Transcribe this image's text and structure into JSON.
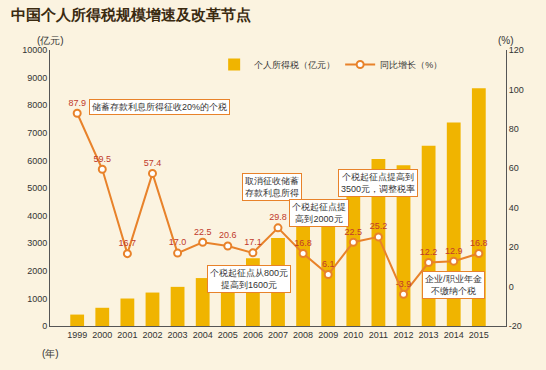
{
  "chart_data": {
    "type": "bar",
    "title": "中国个人所得税规模增速及改革节点",
    "x_label": "(年)",
    "y_label": "(亿元)",
    "y2_label": "(%)",
    "categories": [
      "1999",
      "2000",
      "2001",
      "2002",
      "2003",
      "2004",
      "2005",
      "2006",
      "2007",
      "2008",
      "2009",
      "2010",
      "2011",
      "2012",
      "2013",
      "2014",
      "2015"
    ],
    "series": [
      {
        "name": "个人所得税（亿元）",
        "type": "bar",
        "color": "#f0b400",
        "values": [
          414,
          660,
          996,
          1212,
          1418,
          1737,
          2094,
          2453,
          3185,
          3722,
          3949,
          4837,
          6054,
          5820,
          6532,
          7377,
          8618
        ]
      },
      {
        "name": "同比增长（%）",
        "type": "line",
        "axis": "y2",
        "color": "#e8822a",
        "marker": "circle",
        "data_labels": true,
        "values": [
          87.9,
          59.5,
          16.7,
          57.4,
          17.0,
          22.5,
          20.6,
          17.1,
          29.8,
          16.8,
          6.1,
          22.5,
          25.2,
          -3.9,
          12.2,
          12.9,
          16.8
        ],
        "value_labels": [
          "87.9",
          "59.5",
          "16.7",
          "57.4",
          "17.0",
          "22.5",
          "20.6",
          "17.1",
          "29.8",
          "16.8",
          "6.1",
          "22.5",
          "25.2",
          "-3.9",
          "12.2",
          "12.9",
          "16.8"
        ]
      }
    ],
    "ylim": [
      0,
      10000
    ],
    "yticks": [
      0,
      1000,
      2000,
      3000,
      4000,
      5000,
      6000,
      7000,
      8000,
      9000,
      10000
    ],
    "y2lim": [
      -20,
      120
    ],
    "y2ticks": [
      -20,
      0,
      20,
      40,
      60,
      80,
      100,
      120
    ],
    "grid": false,
    "legend": "top",
    "annotations": [
      {
        "category": "1999",
        "lines": [
          "储蓄存款利息所得征收20%的个税"
        ]
      },
      {
        "category": "2007",
        "lines": [
          "取消征收储蓄",
          "存款利息所得"
        ]
      },
      {
        "category": "2006",
        "lines": [
          "个税起征点从800元",
          "提高到1600元"
        ]
      },
      {
        "category": "2008",
        "lines": [
          "个税起征点提",
          "高到2000元"
        ]
      },
      {
        "category": "2011",
        "lines": [
          "个税起征点提高到",
          "3500元，调整税率"
        ]
      },
      {
        "category": "2014",
        "lines": [
          "企业/职业年金",
          "不缴纳个税"
        ]
      }
    ]
  }
}
